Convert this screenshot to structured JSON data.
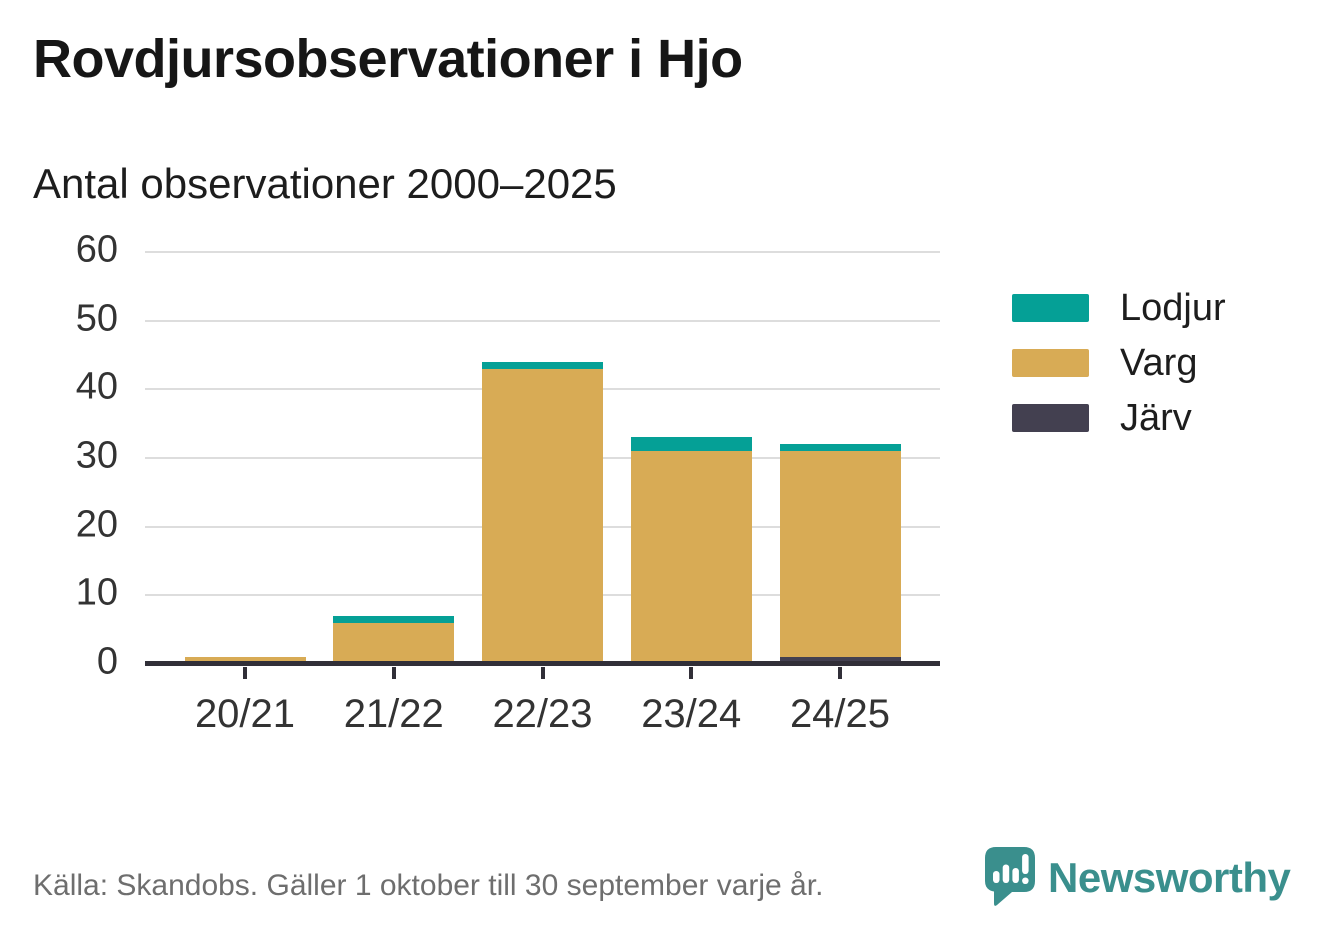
{
  "header": {
    "title": "Rovdjursobservationer i Hjo",
    "subtitle": "Antal observationer 2000–2025"
  },
  "chart_data": {
    "type": "bar",
    "stacked": true,
    "title": "Rovdjursobservationer i Hjo",
    "subtitle": "Antal observationer 2000–2025",
    "categories": [
      "20/21",
      "21/22",
      "22/23",
      "23/24",
      "24/25"
    ],
    "series": [
      {
        "name": "Järv",
        "color": "#434050",
        "values": [
          0,
          0,
          0,
          0,
          1
        ]
      },
      {
        "name": "Varg",
        "color": "#D8AB55",
        "values": [
          1,
          6,
          43,
          31,
          30
        ]
      },
      {
        "name": "Lodjur",
        "color": "#05A096",
        "values": [
          0,
          1,
          1,
          2,
          1
        ]
      }
    ],
    "totals": [
      1,
      7,
      44,
      33,
      32
    ],
    "legend": [
      {
        "label": "Lodjur",
        "color": "#05A096"
      },
      {
        "label": "Varg",
        "color": "#D8AB55"
      },
      {
        "label": "Järv",
        "color": "#434050"
      }
    ],
    "legend_position": "right",
    "xlabel": "",
    "ylabel": "",
    "ylim": [
      0,
      60
    ],
    "y_ticks": [
      0,
      10,
      20,
      30,
      40,
      50,
      60
    ],
    "grid": "horizontal"
  },
  "footer": {
    "source_text": "Källa: Skandobs. Gäller 1 oktober till 30 september varje år.",
    "brand_name": "Newsworthy"
  },
  "colors": {
    "lodjur": "#05A096",
    "varg": "#D8AB55",
    "jarv": "#434050",
    "axis": "#312f38",
    "gridline": "#dddddd",
    "footer_text": "#6e6e6e",
    "brand_teal": "#3a8f8d"
  }
}
